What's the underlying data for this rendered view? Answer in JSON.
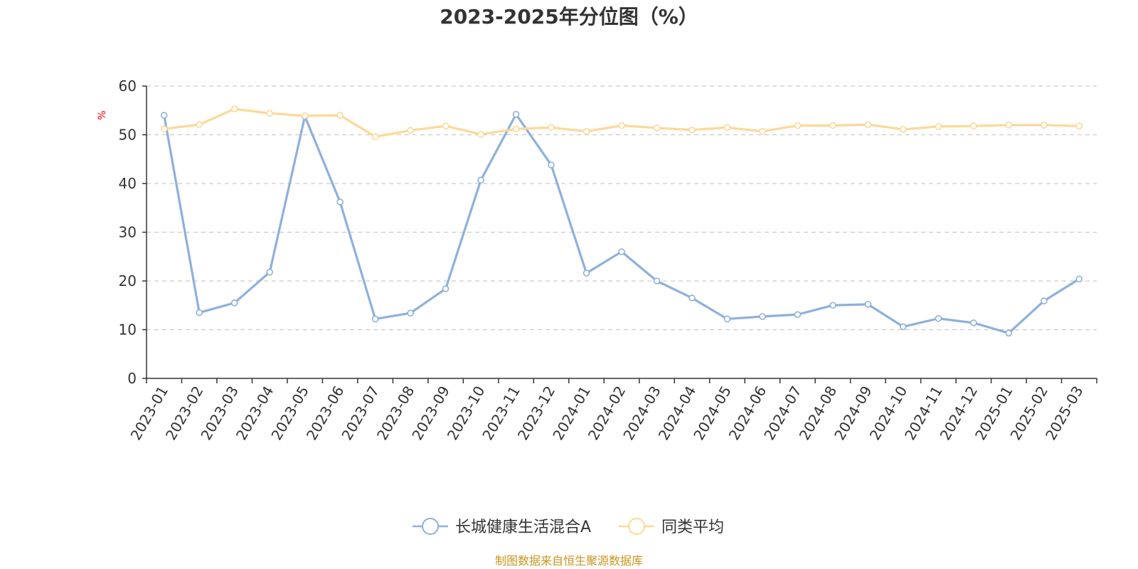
{
  "chart_data": {
    "type": "line",
    "title": "2023-2025年分位图（%）",
    "ylabel": "%",
    "ylim": [
      0,
      60
    ],
    "yticks": [
      "0",
      "10",
      "20",
      "30",
      "40",
      "50",
      "60"
    ],
    "grid": true,
    "legend_position": "bottom",
    "categories": [
      "2023-01",
      "2023-02",
      "2023-03",
      "2023-04",
      "2023-05",
      "2023-06",
      "2023-07",
      "2023-08",
      "2023-09",
      "2023-10",
      "2023-11",
      "2023-12",
      "2024-01",
      "2024-02",
      "2024-03",
      "2024-04",
      "2024-05",
      "2024-06",
      "2024-07",
      "2024-08",
      "2024-09",
      "2024-10",
      "2024-11",
      "2024-12",
      "2025-01",
      "2025-02",
      "2025-03"
    ],
    "series": [
      {
        "name": "长城健康生活混合A",
        "color": "#8eb0dc",
        "values": [
          54.0,
          13.5,
          15.5,
          21.8,
          53.8,
          36.2,
          12.2,
          13.4,
          18.4,
          40.7,
          54.2,
          43.8,
          21.6,
          26.0,
          20.0,
          16.5,
          12.2,
          12.7,
          13.1,
          15.0,
          15.2,
          10.6,
          12.3,
          11.4,
          9.3,
          15.9,
          20.4
        ]
      },
      {
        "name": "同类平均",
        "color": "#fdd898",
        "values": [
          51.2,
          52.1,
          55.3,
          54.4,
          53.9,
          54.0,
          49.6,
          50.9,
          51.8,
          50.1,
          51.2,
          51.5,
          50.7,
          51.9,
          51.4,
          51.0,
          51.5,
          50.7,
          51.9,
          51.9,
          52.1,
          51.1,
          51.7,
          51.8,
          52.0,
          52.0,
          51.8
        ]
      }
    ],
    "source_note": "制图数据来自恒生聚源数据库",
    "colors": {
      "axis": "#333333",
      "grid": "#cccccc",
      "unit_label": "#ff0000",
      "source_note": "#c8961e"
    }
  }
}
